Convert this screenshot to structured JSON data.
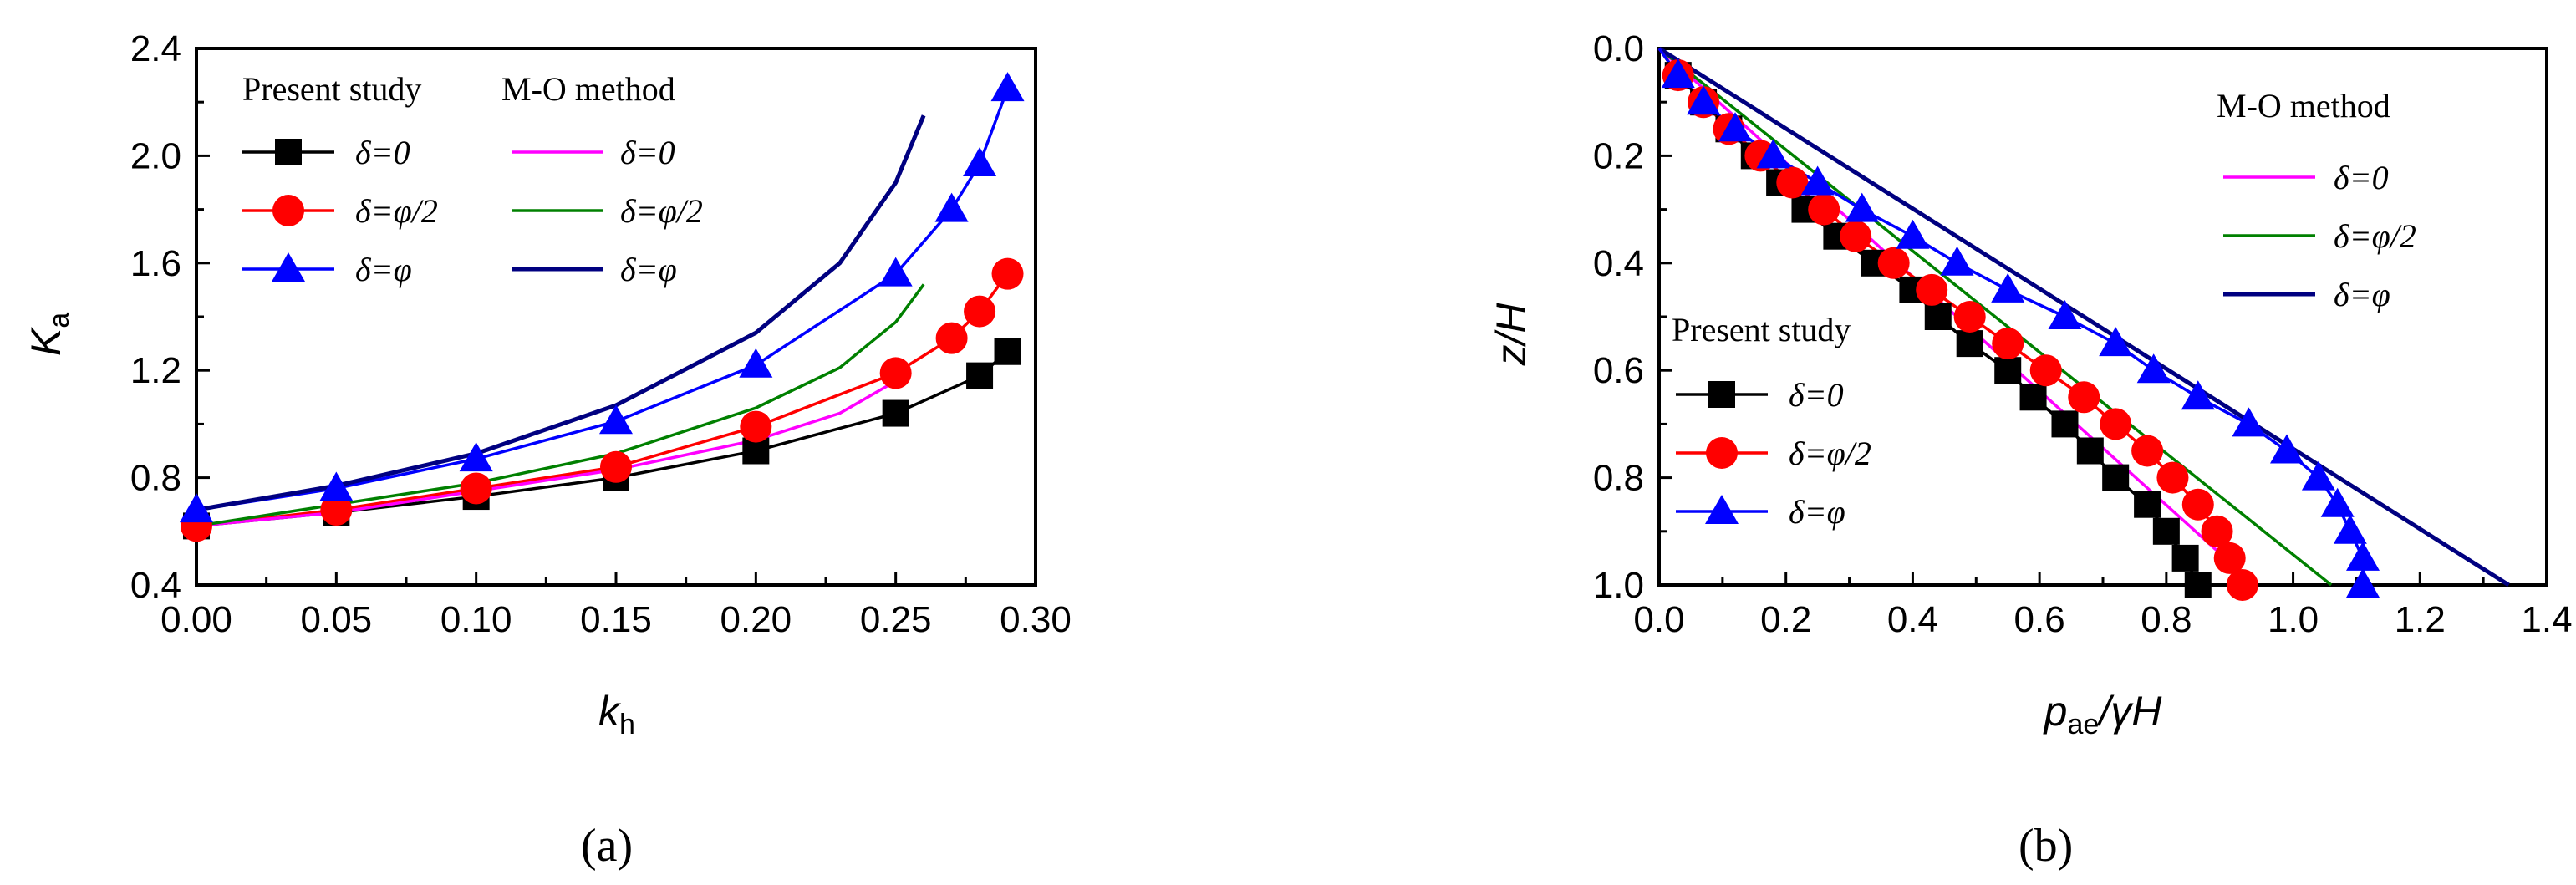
{
  "chart_data": [
    {
      "type": "line",
      "panel_label": "(a)",
      "xlabel": "k",
      "xlabel_sub": "h",
      "ylabel": "K",
      "ylabel_sub": "a",
      "xlim": [
        0,
        0.3
      ],
      "ylim": [
        0.4,
        2.4
      ],
      "x_ticks": [
        "0.00",
        "0.05",
        "0.10",
        "0.15",
        "0.20",
        "0.25",
        "0.30"
      ],
      "y_ticks": [
        "0.4",
        "0.8",
        "1.2",
        "1.6",
        "2.0",
        "2.4"
      ],
      "legend_present_title": "Present study",
      "legend_mo_title": "M-O method",
      "series": [
        {
          "name": "δ=0",
          "group": "present",
          "color": "#000000",
          "marker": "square",
          "x": [
            0,
            0.05,
            0.1,
            0.15,
            0.2,
            0.25,
            0.28,
            0.29
          ],
          "y": [
            0.62,
            0.67,
            0.73,
            0.8,
            0.9,
            1.04,
            1.18,
            1.27
          ]
        },
        {
          "name": "δ=φ/2",
          "group": "present",
          "color": "#ff0000",
          "marker": "circle",
          "x": [
            0,
            0.05,
            0.1,
            0.15,
            0.2,
            0.25,
            0.27,
            0.28,
            0.29
          ],
          "y": [
            0.62,
            0.68,
            0.76,
            0.84,
            0.99,
            1.19,
            1.32,
            1.42,
            1.56
          ]
        },
        {
          "name": "δ=φ",
          "group": "present",
          "color": "#0000ff",
          "marker": "triangle",
          "x": [
            0,
            0.05,
            0.1,
            0.15,
            0.2,
            0.25,
            0.27,
            0.28,
            0.29
          ],
          "y": [
            0.68,
            0.76,
            0.87,
            1.01,
            1.22,
            1.56,
            1.8,
            1.97,
            2.25
          ]
        },
        {
          "name": "δ=0",
          "group": "mo",
          "color": "#ff00ff",
          "marker": "none",
          "x": [
            0,
            0.05,
            0.1,
            0.15,
            0.2,
            0.23,
            0.25
          ],
          "y": [
            0.62,
            0.67,
            0.75,
            0.83,
            0.94,
            1.04,
            1.16
          ]
        },
        {
          "name": "δ=φ/2",
          "group": "mo",
          "color": "#008000",
          "marker": "none",
          "x": [
            0,
            0.05,
            0.1,
            0.15,
            0.2,
            0.23,
            0.25,
            0.26
          ],
          "y": [
            0.62,
            0.7,
            0.78,
            0.89,
            1.06,
            1.21,
            1.38,
            1.52
          ]
        },
        {
          "name": "δ=φ",
          "group": "mo",
          "color": "#000080",
          "marker": "none",
          "x": [
            0,
            0.05,
            0.1,
            0.15,
            0.2,
            0.23,
            0.25,
            0.26
          ],
          "y": [
            0.68,
            0.77,
            0.89,
            1.07,
            1.34,
            1.6,
            1.9,
            2.15
          ]
        }
      ]
    },
    {
      "type": "line",
      "panel_label": "(b)",
      "xlabel": "p",
      "xlabel_sub": "ae",
      "xlabel_tail": "/γH",
      "ylabel": "z/H",
      "xlim": [
        0,
        1.4
      ],
      "ylim": [
        0,
        1.0
      ],
      "y_inverted": true,
      "x_ticks": [
        "0.0",
        "0.2",
        "0.4",
        "0.6",
        "0.8",
        "1.0",
        "1.2",
        "1.4"
      ],
      "y_ticks": [
        "0.0",
        "0.2",
        "0.4",
        "0.6",
        "0.8",
        "1.0"
      ],
      "legend_present_title": "Present study",
      "legend_mo_title": "M-O method",
      "series": [
        {
          "name": "δ=0",
          "group": "present",
          "color": "#000000",
          "marker": "square",
          "z": [
            0,
            0.05,
            0.1,
            0.15,
            0.2,
            0.25,
            0.3,
            0.35,
            0.4,
            0.45,
            0.5,
            0.55,
            0.6,
            0.65,
            0.7,
            0.75,
            0.8,
            0.85,
            0.9,
            0.95,
            1.0
          ],
          "p": [
            0,
            0.03,
            0.07,
            0.11,
            0.15,
            0.19,
            0.23,
            0.28,
            0.34,
            0.4,
            0.44,
            0.49,
            0.55,
            0.59,
            0.64,
            0.68,
            0.72,
            0.77,
            0.8,
            0.83,
            0.85
          ]
        },
        {
          "name": "δ=φ/2",
          "group": "present",
          "color": "#ff0000",
          "marker": "circle",
          "z": [
            0,
            0.05,
            0.1,
            0.15,
            0.2,
            0.25,
            0.3,
            0.35,
            0.4,
            0.45,
            0.5,
            0.55,
            0.6,
            0.65,
            0.7,
            0.75,
            0.8,
            0.85,
            0.9,
            0.95,
            1.0
          ],
          "p": [
            0,
            0.03,
            0.07,
            0.11,
            0.16,
            0.21,
            0.26,
            0.31,
            0.37,
            0.43,
            0.49,
            0.55,
            0.61,
            0.67,
            0.72,
            0.77,
            0.81,
            0.85,
            0.88,
            0.9,
            0.92
          ]
        },
        {
          "name": "δ=φ",
          "group": "present",
          "color": "#0000ff",
          "marker": "triangle",
          "z": [
            0,
            0.05,
            0.1,
            0.15,
            0.2,
            0.25,
            0.3,
            0.35,
            0.4,
            0.45,
            0.5,
            0.55,
            0.6,
            0.65,
            0.7,
            0.75,
            0.8,
            0.85,
            0.9,
            0.95,
            1.0
          ],
          "p": [
            0,
            0.03,
            0.07,
            0.12,
            0.18,
            0.25,
            0.32,
            0.4,
            0.47,
            0.55,
            0.64,
            0.72,
            0.78,
            0.85,
            0.93,
            0.99,
            1.04,
            1.07,
            1.09,
            1.11,
            1.11
          ]
        },
        {
          "name": "δ=0",
          "group": "mo",
          "color": "#ff00ff",
          "marker": "none",
          "z": [
            0,
            1.0
          ],
          "p": [
            0,
            0.94
          ]
        },
        {
          "name": "δ=φ/2",
          "group": "mo",
          "color": "#008000",
          "marker": "none",
          "z": [
            0,
            1.0
          ],
          "p": [
            0,
            1.06
          ]
        },
        {
          "name": "δ=φ",
          "group": "mo",
          "color": "#000080",
          "marker": "none",
          "z": [
            0,
            1.0
          ],
          "p": [
            0,
            1.34
          ]
        }
      ]
    }
  ]
}
